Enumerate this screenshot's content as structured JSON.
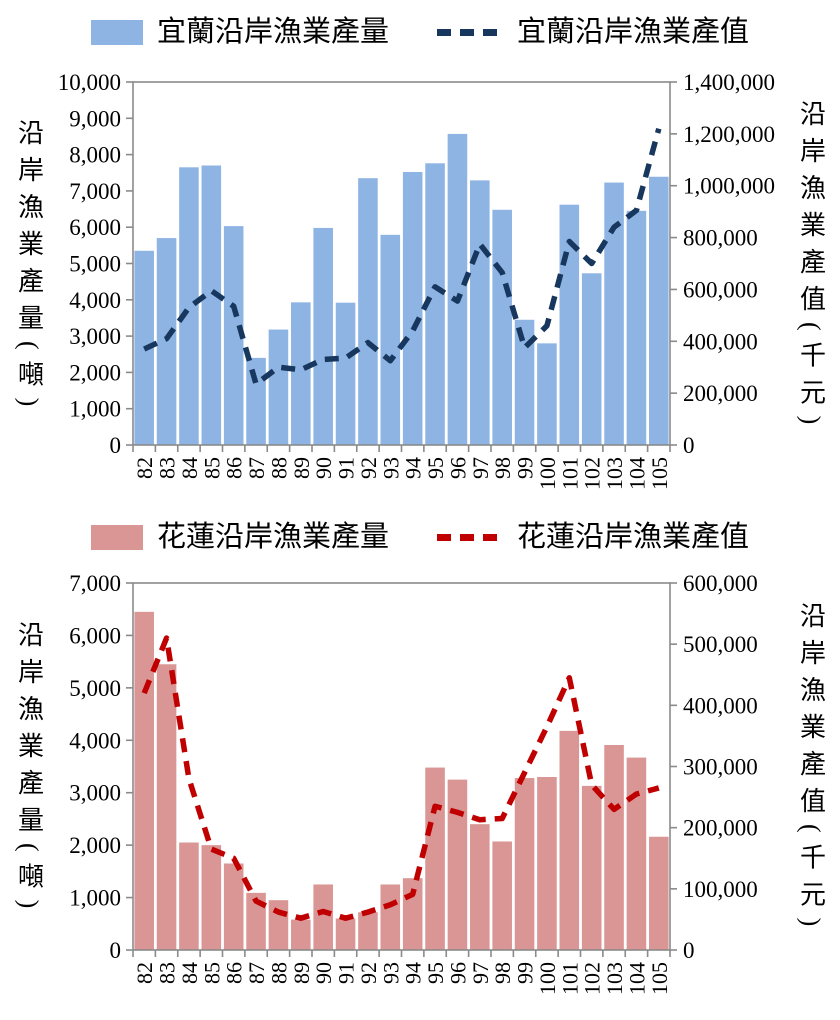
{
  "chart_data": [
    {
      "type": "combo-bar-line",
      "title": "",
      "categories": [
        "82",
        "83",
        "84",
        "85",
        "86",
        "87",
        "88",
        "89",
        "90",
        "91",
        "92",
        "93",
        "94",
        "95",
        "96",
        "97",
        "98",
        "99",
        "100",
        "101",
        "102",
        "103",
        "104",
        "105"
      ],
      "series": [
        {
          "name": "宜蘭沿岸漁業產量",
          "type": "bar",
          "axis": "left",
          "color": "#8EB4E3",
          "values": [
            5350,
            5700,
            7650,
            7700,
            6030,
            2400,
            3180,
            3930,
            5980,
            3920,
            7350,
            5790,
            7520,
            7760,
            8570,
            7290,
            6480,
            3450,
            2800,
            6620,
            4730,
            7230,
            6450,
            7390
          ]
        },
        {
          "name": "宜蘭沿岸漁業產值",
          "type": "line",
          "style": "dashed",
          "axis": "right",
          "color": "#17375E",
          "values": [
            370000,
            410000,
            530000,
            595000,
            535000,
            235000,
            300000,
            290000,
            330000,
            335000,
            395000,
            325000,
            440000,
            610000,
            555000,
            775000,
            665000,
            375000,
            460000,
            785000,
            700000,
            840000,
            905000,
            1220000
          ]
        }
      ],
      "left_axis": {
        "label": "沿岸漁業產量(噸)",
        "min": 0,
        "max": 10000,
        "step": 1000
      },
      "right_axis": {
        "label": "沿岸漁業產值(千元)",
        "min": 0,
        "max": 1400000,
        "step": 200000
      },
      "legend_position": "top",
      "grid": false
    },
    {
      "type": "combo-bar-line",
      "title": "",
      "categories": [
        "82",
        "83",
        "84",
        "85",
        "86",
        "87",
        "88",
        "89",
        "90",
        "91",
        "92",
        "93",
        "94",
        "95",
        "96",
        "97",
        "98",
        "99",
        "100",
        "101",
        "102",
        "103",
        "104",
        "105"
      ],
      "series": [
        {
          "name": "花蓮沿岸漁業產量",
          "type": "bar",
          "axis": "left",
          "color": "#D99694",
          "values": [
            6450,
            5450,
            2050,
            2000,
            1650,
            1090,
            950,
            580,
            1250,
            600,
            720,
            1250,
            1370,
            3480,
            3250,
            2400,
            2070,
            3280,
            3300,
            4180,
            3130,
            3910,
            3670,
            2160
          ]
        },
        {
          "name": "花蓮沿岸漁業產值",
          "type": "line",
          "style": "dashed",
          "axis": "right",
          "color": "#C00000",
          "values": [
            420000,
            510000,
            280000,
            165000,
            150000,
            80000,
            62000,
            52000,
            63000,
            52000,
            62000,
            74000,
            91000,
            235000,
            225000,
            213000,
            215000,
            290000,
            365000,
            445000,
            270000,
            230000,
            255000,
            265000
          ]
        }
      ],
      "left_axis": {
        "label": "沿岸漁業產量(噸)",
        "min": 0,
        "max": 7000,
        "step": 1000
      },
      "right_axis": {
        "label": "沿岸漁業產值(千元)",
        "min": 0,
        "max": 600000,
        "step": 100000
      },
      "legend_position": "top",
      "grid": false
    }
  ],
  "style": {
    "axis_color": "#8a8a8a",
    "tick_len": 7,
    "background": "#ffffff"
  }
}
